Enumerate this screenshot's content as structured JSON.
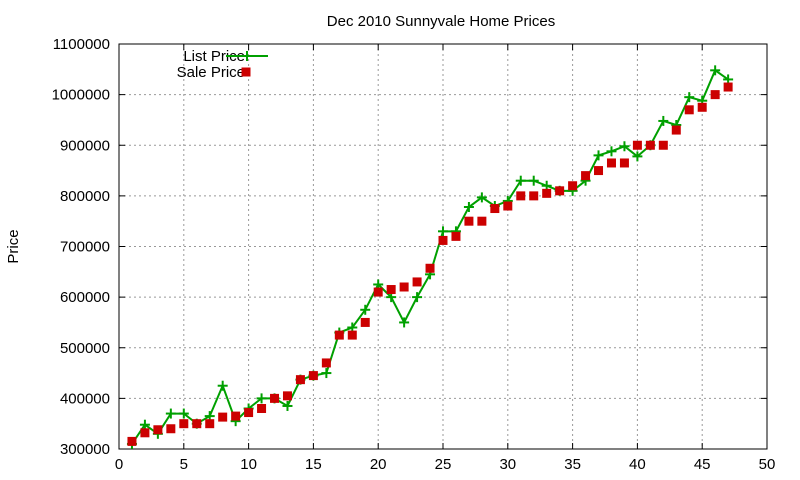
{
  "chart_data": {
    "type": "line",
    "title": "Dec 2010 Sunnyvale Home Prices",
    "xlabel": "",
    "ylabel": "Price",
    "xlim": [
      0,
      50
    ],
    "ylim": [
      300000,
      1100000
    ],
    "xticks": [
      0,
      5,
      10,
      15,
      20,
      25,
      30,
      35,
      40,
      45,
      50
    ],
    "yticks": [
      300000,
      400000,
      500000,
      600000,
      700000,
      800000,
      900000,
      1000000,
      1100000
    ],
    "grid": true,
    "legend_position": "top-left",
    "series": [
      {
        "name": "List Price",
        "style": "line-with-plus-markers",
        "color": "#00a000",
        "x": [
          1,
          2,
          3,
          4,
          5,
          6,
          7,
          8,
          9,
          10,
          11,
          12,
          13,
          14,
          15,
          16,
          17,
          18,
          19,
          20,
          21,
          22,
          23,
          24,
          25,
          26,
          27,
          28,
          29,
          30,
          31,
          32,
          33,
          34,
          35,
          36,
          37,
          38,
          39,
          40,
          41,
          42,
          43,
          44,
          45,
          46,
          47
        ],
        "values": [
          310000,
          348000,
          330000,
          370000,
          370000,
          350000,
          365000,
          425000,
          355000,
          380000,
          400000,
          400000,
          385000,
          437000,
          445000,
          450000,
          530000,
          540000,
          575000,
          625000,
          600000,
          550000,
          600000,
          645000,
          730000,
          730000,
          778000,
          797000,
          780000,
          790000,
          830000,
          830000,
          820000,
          810000,
          810000,
          830000,
          880000,
          888000,
          898000,
          878000,
          900000,
          948000,
          940000,
          995000,
          988000,
          1048000,
          1030000
        ]
      },
      {
        "name": "Sale Price",
        "style": "square-markers",
        "color": "#cc0000",
        "x": [
          1,
          2,
          3,
          4,
          5,
          6,
          7,
          8,
          9,
          10,
          11,
          12,
          13,
          14,
          15,
          16,
          17,
          18,
          19,
          20,
          21,
          22,
          23,
          24,
          25,
          26,
          27,
          28,
          29,
          30,
          31,
          32,
          33,
          34,
          35,
          36,
          37,
          38,
          39,
          40,
          41,
          42,
          43,
          44,
          45,
          46,
          47
        ],
        "values": [
          315000,
          332000,
          338000,
          340000,
          350000,
          350000,
          350000,
          363000,
          365000,
          372000,
          380000,
          400000,
          405000,
          437000,
          445000,
          470000,
          525000,
          525000,
          550000,
          610000,
          615000,
          620000,
          630000,
          657000,
          712000,
          720000,
          750000,
          750000,
          775000,
          780000,
          800000,
          800000,
          805000,
          810000,
          820000,
          840000,
          850000,
          865000,
          865000,
          900000,
          900000,
          900000,
          930000,
          970000,
          975000,
          1000000,
          1015000
        ]
      }
    ]
  }
}
